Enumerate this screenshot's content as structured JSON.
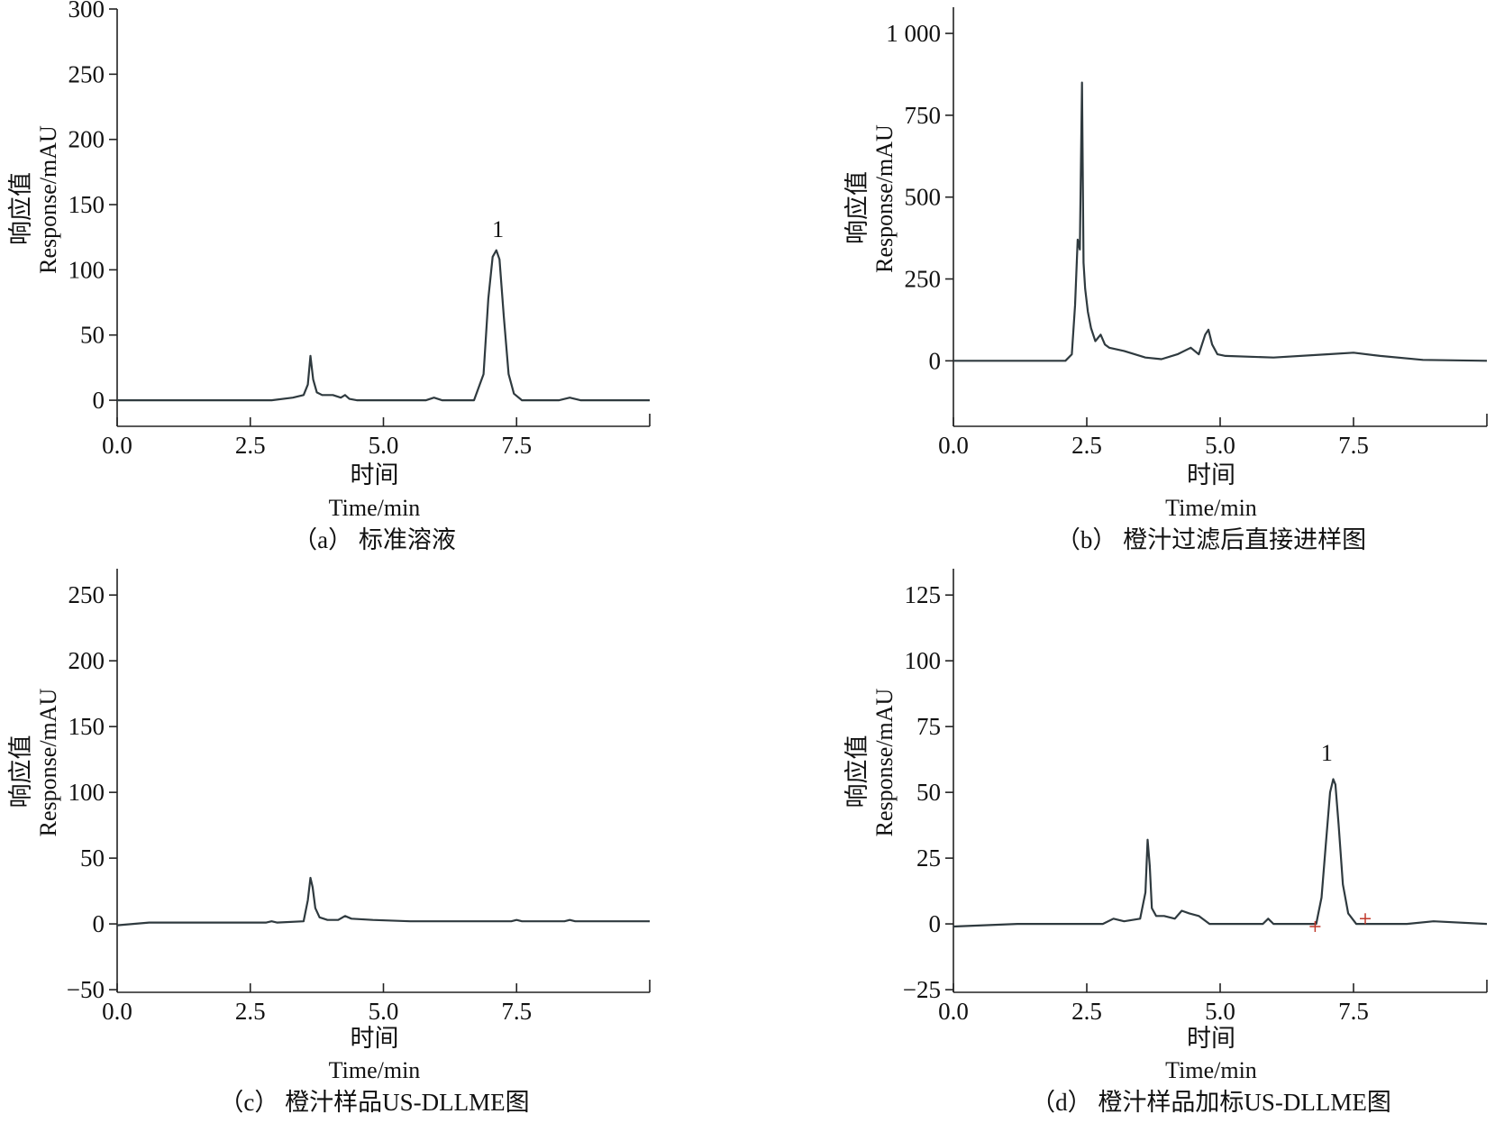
{
  "chart_data": [
    {
      "id": "a",
      "type": "line",
      "caption": "（a） 标准溶液",
      "xlabel_cn": "时间",
      "xlabel_en": "Time/min",
      "ylabel_cn": "响应值",
      "ylabel_en": "Response/mAU",
      "xlim": [
        0,
        10
      ],
      "ylim": [
        -20,
        300
      ],
      "xticks": [
        0.0,
        2.5,
        5.0,
        7.5
      ],
      "xtick_labels": [
        "0.0",
        "2.5",
        "5.0",
        "7.5"
      ],
      "yticks": [
        0,
        50,
        100,
        150,
        200,
        250,
        300
      ],
      "ytick_labels": [
        "0",
        "50",
        "100",
        "150",
        "200",
        "250",
        "300"
      ],
      "series": [
        {
          "x": [
            0,
            2.9,
            3.3,
            3.5,
            3.58,
            3.63,
            3.68,
            3.75,
            3.85,
            4.05,
            4.2,
            4.28,
            4.36,
            4.5,
            5.8,
            5.95,
            6.1,
            6.7,
            6.88,
            6.97,
            7.05,
            7.12,
            7.18,
            7.26,
            7.35,
            7.45,
            7.6,
            8.3,
            8.5,
            8.7,
            10
          ],
          "y": [
            0,
            0,
            2,
            4,
            12,
            34,
            16,
            6,
            4,
            4,
            2,
            4,
            1,
            0,
            0,
            2,
            0,
            0,
            20,
            78,
            110,
            115,
            108,
            64,
            20,
            5,
            0,
            0,
            2,
            0,
            0
          ]
        }
      ],
      "annotations": [
        {
          "text": "1",
          "x": 7.15,
          "y": 125
        }
      ]
    },
    {
      "id": "b",
      "type": "line",
      "caption": "（b） 橙汁过滤后直接进样图",
      "xlabel_cn": "时间",
      "xlabel_en": "Time/min",
      "ylabel_cn": "响应值",
      "ylabel_en": "Response/mAU",
      "xlim": [
        0,
        10
      ],
      "ylim": [
        -200,
        1080
      ],
      "xticks": [
        0.0,
        2.5,
        5.0,
        7.5
      ],
      "xtick_labels": [
        "0.0",
        "2.5",
        "5.0",
        "7.5"
      ],
      "yticks": [
        0,
        250,
        500,
        750,
        1000
      ],
      "ytick_labels": [
        "0",
        "250",
        "500",
        "750",
        "1 000"
      ],
      "series": [
        {
          "x": [
            0,
            2.1,
            2.22,
            2.28,
            2.33,
            2.37,
            2.41,
            2.44,
            2.47,
            2.52,
            2.58,
            2.66,
            2.76,
            2.84,
            2.92,
            3.2,
            3.6,
            3.9,
            4.2,
            4.45,
            4.6,
            4.72,
            4.78,
            4.85,
            4.95,
            5.1,
            6.0,
            7.0,
            7.5,
            8.0,
            8.8,
            10
          ],
          "y": [
            0,
            0,
            20,
            170,
            370,
            340,
            850,
            300,
            220,
            150,
            100,
            60,
            80,
            50,
            40,
            30,
            10,
            5,
            20,
            40,
            20,
            80,
            95,
            50,
            20,
            15,
            10,
            20,
            25,
            15,
            3,
            0
          ]
        }
      ],
      "annotations": []
    },
    {
      "id": "c",
      "type": "line",
      "caption": "（c） 橙汁样品US-DLLME图",
      "xlabel_cn": "时间",
      "xlabel_en": "Time/min",
      "ylabel_cn": "响应值",
      "ylabel_en": "Response/mAU",
      "xlim": [
        0,
        10
      ],
      "ylim": [
        -52,
        270
      ],
      "xticks": [
        0.0,
        2.5,
        5.0,
        7.5
      ],
      "xtick_labels": [
        "0.0",
        "2.5",
        "5.0",
        "7.5"
      ],
      "yticks": [
        -50,
        0,
        50,
        100,
        150,
        200,
        250
      ],
      "ytick_labels": [
        "−50",
        "0",
        "50",
        "100",
        "150",
        "200",
        "250"
      ],
      "series": [
        {
          "x": [
            0,
            0.6,
            2.8,
            2.9,
            3.0,
            3.5,
            3.58,
            3.63,
            3.67,
            3.72,
            3.8,
            3.95,
            4.15,
            4.28,
            4.4,
            4.8,
            5.5,
            7.4,
            7.5,
            7.6,
            8.4,
            8.5,
            8.6,
            10
          ],
          "y": [
            -1,
            1,
            1,
            2,
            1,
            2,
            18,
            35,
            28,
            12,
            5,
            3,
            3,
            6,
            4,
            3,
            2,
            2,
            3,
            2,
            2,
            3,
            2,
            2
          ]
        }
      ],
      "annotations": []
    },
    {
      "id": "d",
      "type": "line",
      "caption": "（d） 橙汁样品加标US-DLLME图",
      "xlabel_cn": "时间",
      "xlabel_en": "Time/min",
      "ylabel_cn": "响应值",
      "ylabel_en": "Response/mAU",
      "xlim": [
        0,
        10
      ],
      "ylim": [
        -26,
        135
      ],
      "xticks": [
        0.0,
        2.5,
        5.0,
        7.5
      ],
      "xtick_labels": [
        "0.0",
        "2.5",
        "5.0",
        "7.5"
      ],
      "yticks": [
        -25,
        0,
        25,
        50,
        75,
        100,
        125
      ],
      "ytick_labels": [
        "−25",
        "0",
        "25",
        "50",
        "75",
        "100",
        "125"
      ],
      "series": [
        {
          "x": [
            0,
            1.2,
            2.8,
            3.0,
            3.2,
            3.5,
            3.6,
            3.64,
            3.68,
            3.72,
            3.8,
            3.95,
            4.15,
            4.28,
            4.42,
            4.6,
            4.8,
            5.8,
            5.9,
            6.0,
            6.8,
            6.9,
            6.98,
            7.06,
            7.12,
            7.16,
            7.22,
            7.3,
            7.4,
            7.55,
            8.5,
            9.0,
            10
          ],
          "y": [
            -1,
            0,
            0,
            2,
            1,
            2,
            12,
            32,
            22,
            6,
            3,
            3,
            2,
            5,
            4,
            3,
            0,
            0,
            2,
            0,
            0,
            10,
            30,
            50,
            55,
            53,
            38,
            15,
            4,
            0,
            0,
            1,
            0
          ]
        }
      ],
      "markers": [
        {
          "x": 6.78,
          "y": -1
        },
        {
          "x": 7.72,
          "y": 2
        }
      ],
      "marker_color": "#c0392b",
      "annotations": [
        {
          "text": "1",
          "x": 7.0,
          "y": 62
        }
      ]
    }
  ]
}
